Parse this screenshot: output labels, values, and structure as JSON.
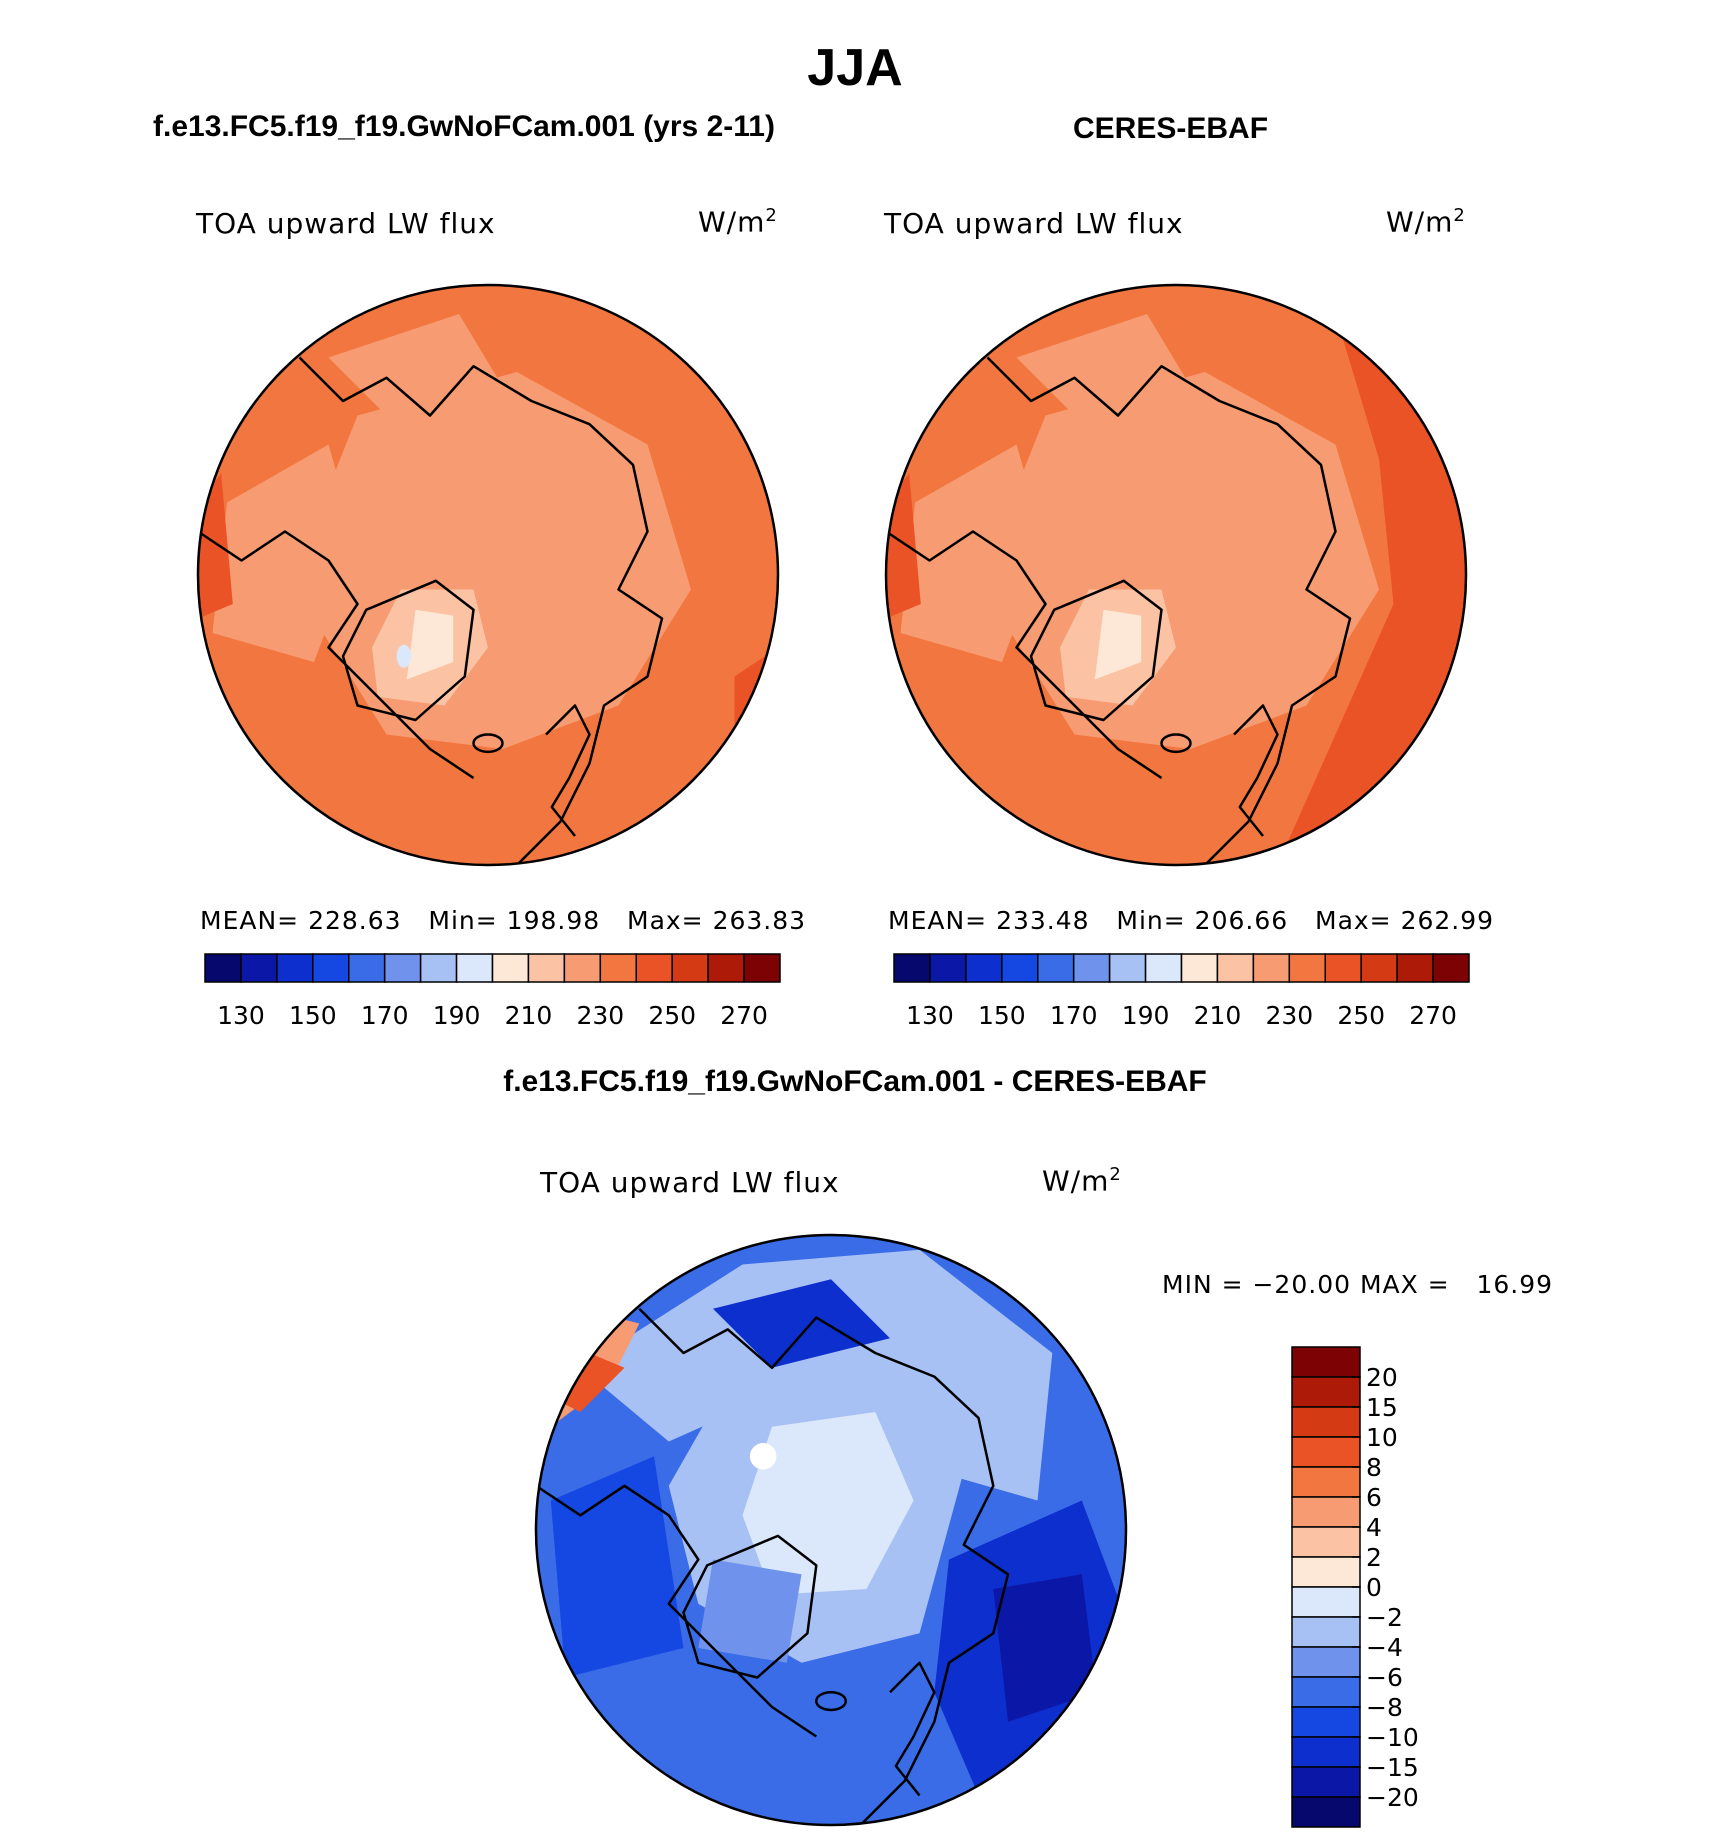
{
  "season": "JJA",
  "panels": {
    "model": {
      "case_title": "f.e13.FC5.f19_f19.GwNoFCam.001 (yrs 2-11)",
      "variable": "TOA upward LW flux",
      "units": "W/m",
      "units_exp": "2",
      "mean_label": "MEAN=",
      "mean": "228.63",
      "min_label": "Min=",
      "min": "198.98",
      "max_label": "Max=",
      "max": "263.83"
    },
    "obs": {
      "case_title": "CERES-EBAF",
      "variable": "TOA upward LW flux",
      "units": "W/m",
      "units_exp": "2",
      "mean_label": "MEAN=",
      "mean": "233.48",
      "min_label": "Min=",
      "min": "206.66",
      "max_label": "Max=",
      "max": "262.99"
    },
    "diff": {
      "case_title": "f.e13.FC5.f19_f19.GwNoFCam.001 - CERES-EBAF",
      "variable": "TOA upward LW flux",
      "units": "W/m",
      "units_exp": "2",
      "minmax_text": "MIN = −20.00 MAX =   16.99"
    }
  },
  "chart_data": [
    {
      "type": "heatmap",
      "title": "TOA upward LW flux",
      "units": "W/m2",
      "projection": "north polar stereographic",
      "mean": 228.63,
      "min": 198.98,
      "max": 263.83,
      "colorbar_levels": [
        130,
        140,
        150,
        160,
        170,
        180,
        190,
        200,
        210,
        220,
        230,
        240,
        250,
        260,
        270
      ],
      "colorbar_tick_labels": [
        "130",
        "150",
        "170",
        "190",
        "210",
        "230",
        "250",
        "270"
      ],
      "colorbar_colors": [
        "#06086e",
        "#0b17a6",
        "#0d2fce",
        "#1547e3",
        "#3a6ce8",
        "#6f93ec",
        "#a8c1f4",
        "#dbe8fb",
        "#fde7d6",
        "#fbc3a3",
        "#f79b72",
        "#f2763f",
        "#ea5325",
        "#d43a14",
        "#ad1a07",
        "#7c0203"
      ]
    },
    {
      "type": "heatmap",
      "title": "TOA upward LW flux",
      "units": "W/m2",
      "projection": "north polar stereographic",
      "mean": 233.48,
      "min": 206.66,
      "max": 262.99,
      "colorbar_levels": [
        130,
        140,
        150,
        160,
        170,
        180,
        190,
        200,
        210,
        220,
        230,
        240,
        250,
        260,
        270
      ],
      "colorbar_tick_labels": [
        "130",
        "150",
        "170",
        "190",
        "210",
        "230",
        "250",
        "270"
      ],
      "colorbar_colors": [
        "#06086e",
        "#0b17a6",
        "#0d2fce",
        "#1547e3",
        "#3a6ce8",
        "#6f93ec",
        "#a8c1f4",
        "#dbe8fb",
        "#fde7d6",
        "#fbc3a3",
        "#f79b72",
        "#f2763f",
        "#ea5325",
        "#d43a14",
        "#ad1a07",
        "#7c0203"
      ]
    },
    {
      "type": "heatmap",
      "title": "TOA upward LW flux",
      "units": "W/m2",
      "projection": "north polar stereographic",
      "min": -20.0,
      "max": 16.99,
      "colorbar_levels": [
        20,
        15,
        10,
        8,
        6,
        4,
        2,
        0,
        -2,
        -4,
        -6,
        -8,
        -10,
        -15,
        -20
      ],
      "colorbar_tick_labels": [
        "20",
        "15",
        "10",
        "8",
        "6",
        "4",
        "2",
        "0",
        "−2",
        "−4",
        "−6",
        "−8",
        "−10",
        "−15",
        "−20"
      ],
      "colorbar_colors": [
        "#7c0203",
        "#ad1a07",
        "#d43a14",
        "#ea5325",
        "#f2763f",
        "#f79b72",
        "#fbc3a3",
        "#fde7d6",
        "#dbe8fb",
        "#a8c1f4",
        "#6f93ec",
        "#3a6ce8",
        "#1547e3",
        "#0d2fce",
        "#0b17a6",
        "#06086e"
      ]
    }
  ]
}
